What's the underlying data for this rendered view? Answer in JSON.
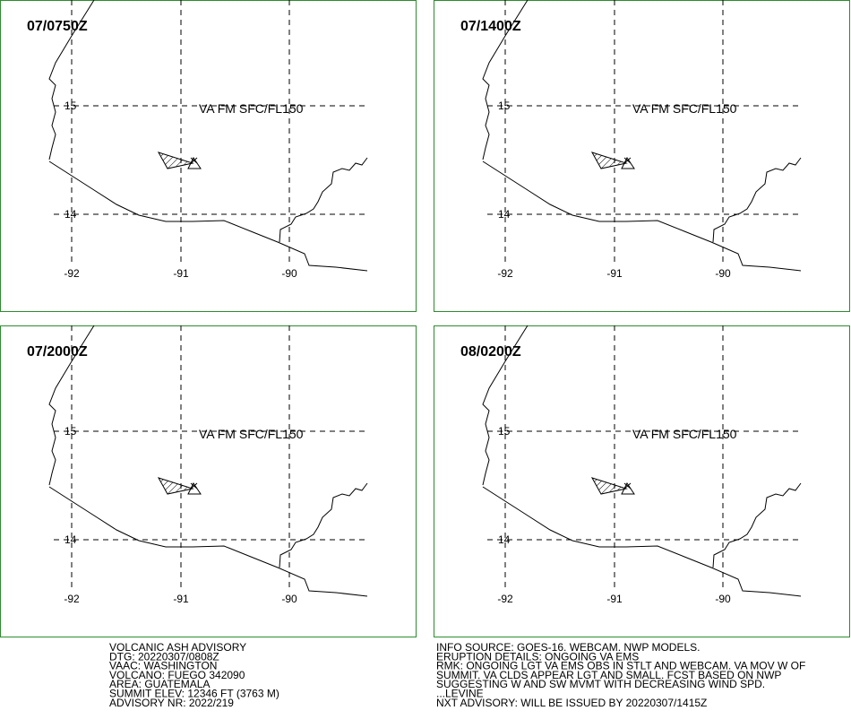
{
  "panels": [
    {
      "time": "07/0750Z",
      "label": "VA FM SFC/FL150",
      "lat_labels": [
        "15",
        "14"
      ],
      "lon_labels": [
        "-92",
        "-91",
        "-90"
      ]
    },
    {
      "time": "07/1400Z",
      "label": "VA FM SFC/FL150",
      "lat_labels": [
        "15",
        "14"
      ],
      "lon_labels": [
        "-92",
        "-91",
        "-90"
      ]
    },
    {
      "time": "07/2000Z",
      "label": "VA FM SFC/FL150",
      "lat_labels": [
        "15",
        "14"
      ],
      "lon_labels": [
        "-92",
        "-91",
        "-90"
      ]
    },
    {
      "time": "08/0200Z",
      "label": "VA FM SFC/FL150",
      "lat_labels": [
        "15",
        "14"
      ],
      "lon_labels": [
        "-92",
        "-91",
        "-90"
      ]
    }
  ],
  "advisory_left": [
    "VOLCANIC ASH ADVISORY",
    "DTG: 20220307/0808Z",
    "VAAC: WASHINGTON",
    "VOLCANO: FUEGO 342090",
    "AREA: GUATEMALA",
    "SUMMIT ELEV: 12346 FT (3763 M)",
    "ADVISORY NR: 2022/219"
  ],
  "advisory_right": [
    "INFO SOURCE: GOES-16. WEBCAM. NWP MODELS.",
    "ERUPTION DETAILS: ONGOING VA EMS",
    "RMK: ONGOING LGT VA EMS OBS IN STLT AND WEBCAM. VA MOV W OF",
    "SUMMIT. VA CLDS APPEAR LGT AND SMALL. FCST BASED ON NWP",
    "SUGGESTING W AND SW MVMT WITH DECREASING WIND SPD.",
    "...LEVINE",
    "NXT ADVISORY: WILL BE ISSUED BY 20220307/1415Z"
  ]
}
